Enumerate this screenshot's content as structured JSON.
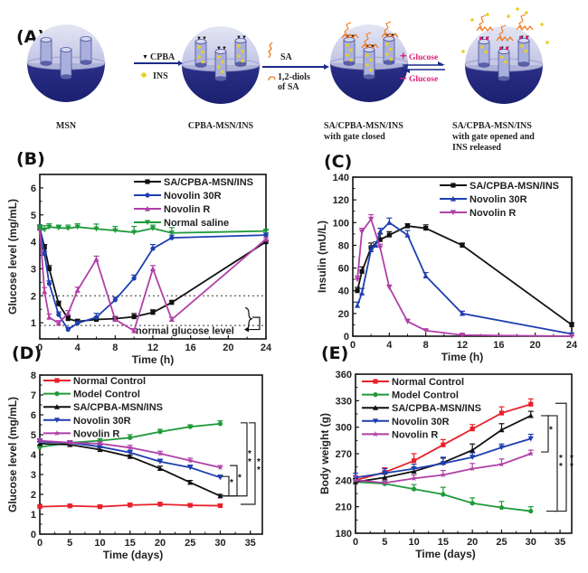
{
  "panel_labels": {
    "a": "(A)",
    "b": "(B)",
    "c": "(C)",
    "d": "(D)",
    "e": "(E)"
  },
  "schematic": {
    "stages": [
      {
        "label_lines": [
          "MSN"
        ]
      },
      {
        "label_lines": [
          "CPBA-MSN/INS"
        ]
      },
      {
        "label_lines": [
          "SA/CPBA-MSN/INS",
          "with gate closed"
        ]
      },
      {
        "label_lines": [
          "SA/CPBA-MSN/INS",
          "with gate opened and",
          "INS released"
        ]
      }
    ],
    "step1": {
      "reagent1": "CPBA",
      "reagent2": "INS"
    },
    "step2": {
      "reagent1": "SA",
      "reagent2_lines": [
        "1,2-diols",
        "of SA"
      ]
    },
    "step3": {
      "forward": "Glucose",
      "forward_sign": "+",
      "reverse": "Glucose",
      "reverse_sign": "−"
    },
    "colors": {
      "sphere": "#2a2f8f",
      "sphere_light": "#b9bde0",
      "sa_chain": "#f07a20",
      "insulin": "#e8d020",
      "glucose_text": "#e0207a",
      "arrow": "#1b2a8a"
    }
  },
  "chart_data": [
    {
      "id": "B",
      "type": "line",
      "title": "",
      "xlabel": "Time (h)",
      "ylabel": "Glucose level (mg/mL)",
      "xlim": [
        0,
        24
      ],
      "ylim": [
        0.4,
        6.5
      ],
      "xticks": [
        0,
        4,
        8,
        12,
        16,
        20,
        24
      ],
      "yticks": [
        1,
        2,
        3,
        4,
        5,
        6
      ],
      "legend_position": "top-right",
      "reference_lines": [
        {
          "y": 2.0,
          "style": "dotted"
        },
        {
          "y": 0.9,
          "style": "dotted"
        }
      ],
      "annotation": "normal glucose level",
      "series": [
        {
          "name": "SA/CPBA-MSN/INS",
          "color": "#111111",
          "marker": "square",
          "x": [
            0,
            0.5,
            1,
            2,
            3,
            4,
            6,
            8,
            10,
            12,
            14,
            24
          ],
          "y": [
            4.5,
            3.8,
            3.0,
            1.7,
            1.15,
            1.05,
            1.12,
            1.15,
            1.22,
            1.38,
            1.75,
            4.0
          ],
          "err": [
            0.1,
            0.1,
            0.12,
            0.1,
            0.1,
            0.08,
            0.08,
            0.08,
            0.12,
            0.1,
            0.08,
            0.05
          ]
        },
        {
          "name": "Novolin 30R",
          "color": "#1f3fb0",
          "marker": "circle",
          "x": [
            0,
            0.5,
            1,
            2,
            3,
            4,
            6,
            8,
            10,
            12,
            14,
            24
          ],
          "y": [
            4.55,
            3.55,
            2.45,
            1.3,
            0.75,
            0.98,
            1.2,
            1.85,
            2.65,
            3.75,
            4.15,
            4.25
          ],
          "err": [
            0.08,
            0.1,
            0.1,
            0.1,
            0.08,
            0.08,
            0.15,
            0.1,
            0.12,
            0.15,
            0.1,
            0.08
          ]
        },
        {
          "name": "Novolin R",
          "color": "#b040a8",
          "marker": "triangle-up",
          "x": [
            0,
            0.5,
            1,
            2,
            3,
            4,
            6,
            8,
            10,
            12,
            14,
            24
          ],
          "y": [
            4.5,
            2.15,
            1.2,
            0.98,
            1.35,
            2.2,
            3.35,
            1.12,
            0.7,
            3.0,
            1.12,
            4.1
          ],
          "err": [
            0.1,
            0.15,
            0.12,
            0.1,
            0.1,
            0.12,
            0.12,
            0.08,
            0.08,
            0.12,
            0.08,
            0.05
          ]
        },
        {
          "name": "Normal saline",
          "color": "#1f9a3a",
          "marker": "triangle-down",
          "x": [
            0,
            0.5,
            1,
            2,
            3,
            4,
            6,
            8,
            10,
            12,
            14,
            24
          ],
          "y": [
            4.5,
            4.45,
            4.55,
            4.52,
            4.5,
            4.55,
            4.48,
            4.42,
            4.35,
            4.5,
            4.33,
            4.4
          ],
          "err": [
            0.12,
            0.15,
            0.12,
            0.1,
            0.12,
            0.12,
            0.18,
            0.15,
            0.22,
            0.12,
            0.2,
            0.05
          ]
        }
      ]
    },
    {
      "id": "C",
      "type": "line",
      "title": "",
      "xlabel": "Time (h)",
      "ylabel": "Insulin (mU/L)",
      "xlim": [
        0,
        24
      ],
      "ylim": [
        0,
        140
      ],
      "xticks": [
        0,
        4,
        8,
        12,
        16,
        20,
        24
      ],
      "yticks": [
        0,
        20,
        40,
        60,
        80,
        100,
        120,
        140
      ],
      "legend_position": "top-right",
      "series": [
        {
          "name": "SA/CPBA-MSN/INS",
          "color": "#111111",
          "marker": "square",
          "x": [
            0.5,
            1,
            2,
            3,
            4,
            6,
            8,
            12,
            24
          ],
          "y": [
            40,
            57,
            78,
            85,
            89,
            97,
            95,
            80,
            10
          ],
          "err": [
            3,
            4,
            4,
            5,
            3,
            2,
            3,
            2,
            2
          ]
        },
        {
          "name": "Novolin 30R",
          "color": "#1f3fb0",
          "marker": "triangle-up",
          "x": [
            0.5,
            1,
            2,
            2.5,
            3,
            4,
            6,
            8,
            12,
            24
          ],
          "y": [
            27,
            38,
            76,
            80,
            92,
            100,
            89,
            53,
            20,
            2
          ],
          "err": [
            3,
            4,
            3,
            3,
            3,
            4,
            4,
            3,
            2,
            1
          ]
        },
        {
          "name": "Novolin R",
          "color": "#b040a8",
          "marker": "triangle-down",
          "x": [
            0.5,
            1,
            2,
            3,
            4,
            6,
            8,
            12,
            24
          ],
          "y": [
            50,
            92,
            103,
            78,
            43,
            13,
            5,
            1,
            0
          ],
          "err": [
            3,
            3,
            4,
            3,
            2,
            2,
            1,
            1,
            0
          ]
        }
      ]
    },
    {
      "id": "D",
      "type": "line",
      "title": "",
      "xlabel": "Time (days)",
      "ylabel": "Glucose level (mg/mL)",
      "xlim": [
        0,
        37
      ],
      "ylim": [
        0,
        8
      ],
      "xticks": [
        0,
        5,
        10,
        15,
        20,
        25,
        30,
        35
      ],
      "yticks": [
        0,
        1,
        2,
        3,
        4,
        5,
        6,
        7,
        8
      ],
      "legend_position": "top-left",
      "significance": [
        {
          "label": "*",
          "between": [
            "SA/CPBA-MSN/INS",
            "Novolin 30R"
          ]
        },
        {
          "label": "*",
          "between": [
            "SA/CPBA-MSN/INS",
            "Novolin R"
          ]
        },
        {
          "label": "**",
          "between": [
            "SA/CPBA-MSN/INS",
            "Model Control"
          ]
        },
        {
          "label": "**",
          "between": [
            "Normal Control",
            "Model Control"
          ]
        }
      ],
      "series": [
        {
          "name": "Normal Control",
          "color": "#e8202a",
          "marker": "square",
          "x": [
            0,
            5,
            10,
            15,
            20,
            25,
            30
          ],
          "y": [
            1.38,
            1.42,
            1.38,
            1.46,
            1.5,
            1.45,
            1.43
          ],
          "err": [
            0.08,
            0.08,
            0.08,
            0.1,
            0.1,
            0.08,
            0.08
          ]
        },
        {
          "name": "Model Control",
          "color": "#1f9a3a",
          "marker": "circle",
          "x": [
            0,
            5,
            10,
            15,
            20,
            25,
            30
          ],
          "y": [
            4.38,
            4.6,
            4.7,
            4.85,
            5.15,
            5.4,
            5.55
          ],
          "err": [
            0.1,
            0.1,
            0.1,
            0.15,
            0.12,
            0.1,
            0.15
          ]
        },
        {
          "name": "SA/CPBA-MSN/INS",
          "color": "#111111",
          "marker": "triangle-up",
          "x": [
            0,
            5,
            10,
            15,
            20,
            25,
            30
          ],
          "y": [
            4.55,
            4.5,
            4.25,
            3.9,
            3.3,
            2.6,
            1.92
          ],
          "err": [
            0.1,
            0.1,
            0.1,
            0.08,
            0.12,
            0.1,
            0.08
          ]
        },
        {
          "name": "Novolin 30R",
          "color": "#1f3fb0",
          "marker": "triangle-down",
          "x": [
            0,
            5,
            10,
            15,
            20,
            25,
            30
          ],
          "y": [
            4.65,
            4.6,
            4.4,
            4.1,
            3.65,
            3.35,
            2.85
          ],
          "err": [
            0.1,
            0.1,
            0.1,
            0.12,
            0.12,
            0.12,
            0.12
          ]
        },
        {
          "name": "Novolin R",
          "color": "#b040a8",
          "marker": "star",
          "x": [
            0,
            5,
            10,
            15,
            20,
            25,
            30
          ],
          "y": [
            4.7,
            4.6,
            4.55,
            4.35,
            4.05,
            3.7,
            3.35
          ],
          "err": [
            0.1,
            0.1,
            0.1,
            0.12,
            0.12,
            0.12,
            0.1
          ]
        }
      ]
    },
    {
      "id": "E",
      "type": "line",
      "title": "",
      "xlabel": "Time (days)",
      "ylabel": "Body weight (g)",
      "xlim": [
        0,
        37
      ],
      "ylim": [
        180,
        360
      ],
      "xticks": [
        0,
        5,
        10,
        15,
        20,
        25,
        30,
        35
      ],
      "yticks": [
        180,
        210,
        240,
        270,
        300,
        330,
        360
      ],
      "legend_position": "top-left",
      "significance": [
        {
          "label": "*",
          "between": [
            "SA/CPBA-MSN/INS",
            "Novolin R"
          ]
        },
        {
          "label": "**",
          "between": [
            "SA/CPBA-MSN/INS",
            "Model Control"
          ]
        },
        {
          "label": "**",
          "between": [
            "Normal Control",
            "Model Control"
          ]
        }
      ],
      "series": [
        {
          "name": "Normal Control",
          "color": "#e8202a",
          "marker": "square",
          "x": [
            0,
            5,
            10,
            15,
            20,
            25,
            30
          ],
          "y": [
            240,
            249,
            262,
            280,
            298,
            316,
            326
          ],
          "err": [
            5,
            5,
            8,
            6,
            5,
            7,
            6
          ]
        },
        {
          "name": "Model Control",
          "color": "#1f9a3a",
          "marker": "circle",
          "x": [
            0,
            5,
            10,
            15,
            20,
            25,
            30
          ],
          "y": [
            238,
            236,
            230,
            224,
            214,
            209,
            205
          ],
          "err": [
            3,
            3,
            5,
            8,
            6,
            7,
            5
          ]
        },
        {
          "name": "SA/CPBA-MSN/INS",
          "color": "#111111",
          "marker": "triangle-up",
          "x": [
            0,
            5,
            10,
            15,
            20,
            25,
            30
          ],
          "y": [
            238,
            243,
            250,
            260,
            274,
            297,
            313
          ],
          "err": [
            4,
            4,
            4,
            5,
            7,
            7,
            5
          ]
        },
        {
          "name": "Novolin 30R",
          "color": "#1f3fb0",
          "marker": "triangle-down",
          "x": [
            0,
            5,
            10,
            15,
            20,
            25,
            30
          ],
          "y": [
            243,
            248,
            253,
            259,
            266,
            277,
            287
          ],
          "err": [
            5,
            5,
            5,
            7,
            5,
            4,
            5
          ]
        },
        {
          "name": "Novolin R",
          "color": "#b040a8",
          "marker": "star",
          "x": [
            0,
            5,
            10,
            15,
            20,
            25,
            30
          ],
          "y": [
            240,
            237,
            242,
            246,
            253,
            258,
            270
          ],
          "err": [
            5,
            3,
            4,
            5,
            6,
            6,
            4
          ]
        }
      ]
    }
  ]
}
